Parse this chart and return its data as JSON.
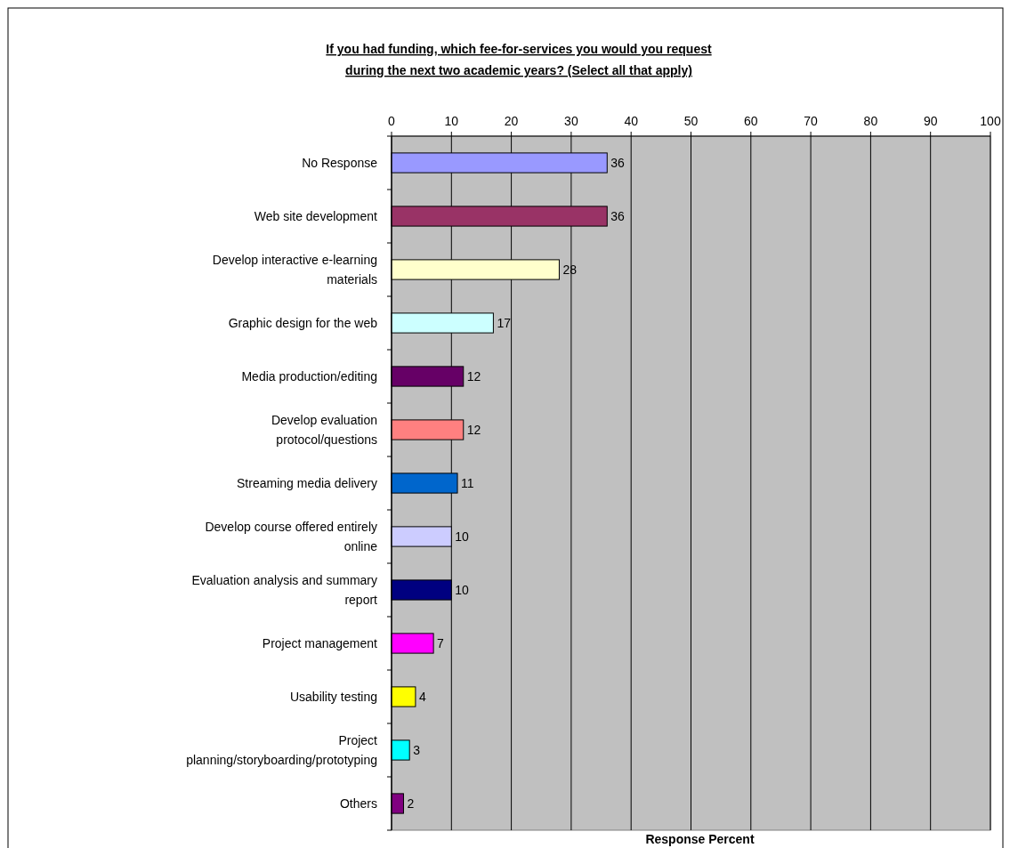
{
  "chart_data": {
    "type": "bar",
    "orientation": "horizontal",
    "title": "If you had funding, which fee-for-services you would you request during the next two academic years? (Select all that apply)",
    "xlabel": "Response Percent",
    "categories": [
      "No Response",
      "Web site development",
      "Develop interactive e-learning materials",
      "Graphic design for the web",
      "Media production/editing",
      "Develop evaluation protocol/questions",
      "Streaming media delivery",
      "Develop course offered entirely online",
      "Evaluation analysis and summary report",
      "Project management",
      "Usability testing",
      "Project planning/storyboarding/prototyping",
      "Others"
    ],
    "values": [
      36,
      36,
      28,
      17,
      12,
      12,
      11,
      10,
      10,
      7,
      4,
      3,
      2
    ],
    "colors": [
      "#9999ff",
      "#993366",
      "#ffffcc",
      "#ccffff",
      "#660066",
      "#ff8080",
      "#0066cc",
      "#ccccff",
      "#000080",
      "#ff00ff",
      "#ffff00",
      "#00ffff",
      "#800080"
    ],
    "xlim": [
      0,
      100
    ],
    "xticks": [
      0,
      10,
      20,
      30,
      40,
      50,
      60,
      70,
      80,
      90,
      100
    ],
    "grid": "x",
    "data_labels": true
  }
}
